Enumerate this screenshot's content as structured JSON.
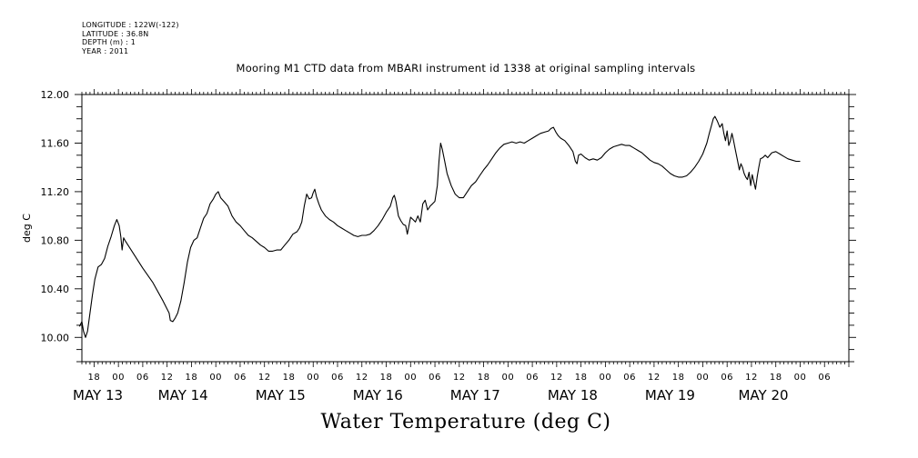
{
  "header": {
    "longitude": "LONGITUDE : 122W(-122)",
    "latitude": "LATITUDE : 36.8N",
    "depth": "DEPTH (m) : 1",
    "year": "YEAR : 2011"
  },
  "chart_data": {
    "type": "line",
    "title": "Mooring M1 CTD data from MBARI instrument id 1338 at original sampling intervals",
    "xlabel": "Water Temperature (deg C)",
    "ylabel": "deg C",
    "xlim_hours": [
      -9,
      180
    ],
    "ylim": [
      9.8,
      12.0
    ],
    "y_ticks": [
      10.0,
      10.4,
      10.8,
      11.2,
      11.6,
      12.0
    ],
    "y_tick_labels": [
      "10.00",
      "10.40",
      "10.80",
      "11.20",
      "11.60",
      "12.00"
    ],
    "x_hour_labels": [
      {
        "h": -6,
        "label": "18"
      },
      {
        "h": 0,
        "label": "00"
      },
      {
        "h": 6,
        "label": "06"
      },
      {
        "h": 12,
        "label": "12"
      },
      {
        "h": 18,
        "label": "18"
      },
      {
        "h": 24,
        "label": "00"
      },
      {
        "h": 30,
        "label": "06"
      },
      {
        "h": 36,
        "label": "12"
      },
      {
        "h": 42,
        "label": "18"
      },
      {
        "h": 48,
        "label": "00"
      },
      {
        "h": 54,
        "label": "06"
      },
      {
        "h": 60,
        "label": "12"
      },
      {
        "h": 66,
        "label": "18"
      },
      {
        "h": 72,
        "label": "00"
      },
      {
        "h": 78,
        "label": "06"
      },
      {
        "h": 84,
        "label": "12"
      },
      {
        "h": 90,
        "label": "18"
      },
      {
        "h": 96,
        "label": "00"
      },
      {
        "h": 102,
        "label": "06"
      },
      {
        "h": 108,
        "label": "12"
      },
      {
        "h": 114,
        "label": "18"
      },
      {
        "h": 120,
        "label": "00"
      },
      {
        "h": 126,
        "label": "06"
      },
      {
        "h": 132,
        "label": "12"
      },
      {
        "h": 138,
        "label": "18"
      },
      {
        "h": 144,
        "label": "00"
      },
      {
        "h": 150,
        "label": "06"
      },
      {
        "h": 156,
        "label": "12"
      },
      {
        "h": 162,
        "label": "18"
      },
      {
        "h": 168,
        "label": "00"
      },
      {
        "h": 174,
        "label": "06"
      }
    ],
    "x_day_labels": [
      {
        "h": -9,
        "label": "MAY 13"
      },
      {
        "h": 12,
        "label": "MAY 14"
      },
      {
        "h": 36,
        "label": "MAY 15"
      },
      {
        "h": 60,
        "label": "MAY 16"
      },
      {
        "h": 84,
        "label": "MAY 17"
      },
      {
        "h": 108,
        "label": "MAY 18"
      },
      {
        "h": 132,
        "label": "MAY 19"
      },
      {
        "h": 155,
        "label": "MAY 20"
      }
    ],
    "series": [
      {
        "points": [
          [
            -9.6,
            10.09
          ],
          [
            -9.0,
            10.13
          ],
          [
            -8.6,
            10.05
          ],
          [
            -8.1,
            10.0
          ],
          [
            -7.6,
            10.05
          ],
          [
            -7.0,
            10.2
          ],
          [
            -6.4,
            10.35
          ],
          [
            -5.8,
            10.48
          ],
          [
            -5.0,
            10.58
          ],
          [
            -4.2,
            10.6
          ],
          [
            -3.4,
            10.65
          ],
          [
            -2.6,
            10.75
          ],
          [
            -1.8,
            10.83
          ],
          [
            -1.0,
            10.92
          ],
          [
            -0.4,
            10.97
          ],
          [
            0.2,
            10.92
          ],
          [
            0.6,
            10.83
          ],
          [
            0.9,
            10.72
          ],
          [
            1.3,
            10.82
          ],
          [
            1.6,
            10.8
          ],
          [
            3.5,
            10.7
          ],
          [
            6.0,
            10.57
          ],
          [
            8.5,
            10.45
          ],
          [
            11.0,
            10.3
          ],
          [
            12.5,
            10.2
          ],
          [
            12.8,
            10.14
          ],
          [
            13.4,
            10.13
          ],
          [
            14.0,
            10.16
          ],
          [
            14.6,
            10.2
          ],
          [
            15.4,
            10.3
          ],
          [
            16.2,
            10.45
          ],
          [
            17.0,
            10.62
          ],
          [
            17.8,
            10.74
          ],
          [
            18.6,
            10.8
          ],
          [
            19.4,
            10.82
          ],
          [
            20.2,
            10.9
          ],
          [
            21.0,
            10.98
          ],
          [
            21.8,
            11.02
          ],
          [
            22.6,
            11.1
          ],
          [
            23.4,
            11.14
          ],
          [
            24.0,
            11.18
          ],
          [
            24.6,
            11.2
          ],
          [
            25.2,
            11.15
          ],
          [
            26.0,
            11.12
          ],
          [
            27.0,
            11.08
          ],
          [
            28.0,
            11.0
          ],
          [
            29.0,
            10.95
          ],
          [
            30.0,
            10.92
          ],
          [
            31.0,
            10.88
          ],
          [
            32.0,
            10.84
          ],
          [
            33.0,
            10.82
          ],
          [
            34.0,
            10.79
          ],
          [
            35.0,
            10.76
          ],
          [
            36.0,
            10.74
          ],
          [
            37.0,
            10.71
          ],
          [
            38.0,
            10.71
          ],
          [
            39.0,
            10.72
          ],
          [
            40.0,
            10.72
          ],
          [
            41.0,
            10.76
          ],
          [
            42.0,
            10.8
          ],
          [
            43.0,
            10.85
          ],
          [
            44.0,
            10.87
          ],
          [
            44.6,
            10.9
          ],
          [
            45.2,
            10.95
          ],
          [
            45.8,
            11.08
          ],
          [
            46.4,
            11.18
          ],
          [
            47.0,
            11.14
          ],
          [
            47.6,
            11.15
          ],
          [
            48.0,
            11.19
          ],
          [
            48.4,
            11.22
          ],
          [
            48.8,
            11.16
          ],
          [
            49.4,
            11.1
          ],
          [
            50.0,
            11.05
          ],
          [
            51.0,
            11.0
          ],
          [
            52.0,
            10.97
          ],
          [
            53.0,
            10.95
          ],
          [
            54.0,
            10.92
          ],
          [
            55.0,
            10.9
          ],
          [
            56.0,
            10.88
          ],
          [
            57.0,
            10.86
          ],
          [
            58.0,
            10.84
          ],
          [
            59.0,
            10.83
          ],
          [
            60.0,
            10.84
          ],
          [
            61.0,
            10.84
          ],
          [
            62.0,
            10.85
          ],
          [
            63.0,
            10.88
          ],
          [
            64.0,
            10.92
          ],
          [
            65.0,
            10.97
          ],
          [
            66.0,
            11.03
          ],
          [
            67.0,
            11.08
          ],
          [
            67.6,
            11.15
          ],
          [
            68.0,
            11.17
          ],
          [
            68.4,
            11.12
          ],
          [
            69.0,
            11.0
          ],
          [
            69.6,
            10.96
          ],
          [
            70.2,
            10.93
          ],
          [
            70.8,
            10.92
          ],
          [
            71.2,
            10.85
          ],
          [
            71.6,
            10.92
          ],
          [
            72.0,
            10.99
          ],
          [
            72.6,
            10.97
          ],
          [
            73.2,
            10.95
          ],
          [
            73.8,
            11.0
          ],
          [
            74.4,
            10.95
          ],
          [
            75.0,
            11.1
          ],
          [
            75.6,
            11.13
          ],
          [
            76.2,
            11.05
          ],
          [
            76.8,
            11.08
          ],
          [
            77.4,
            11.1
          ],
          [
            78.0,
            11.12
          ],
          [
            78.6,
            11.25
          ],
          [
            79.0,
            11.45
          ],
          [
            79.4,
            11.6
          ],
          [
            79.8,
            11.55
          ],
          [
            80.4,
            11.45
          ],
          [
            81.0,
            11.35
          ],
          [
            82.0,
            11.25
          ],
          [
            83.0,
            11.18
          ],
          [
            84.0,
            11.15
          ],
          [
            85.0,
            11.15
          ],
          [
            86.0,
            11.2
          ],
          [
            87.0,
            11.25
          ],
          [
            88.0,
            11.28
          ],
          [
            89.0,
            11.33
          ],
          [
            90.0,
            11.38
          ],
          [
            91.0,
            11.42
          ],
          [
            92.0,
            11.47
          ],
          [
            93.0,
            11.52
          ],
          [
            94.0,
            11.56
          ],
          [
            95.0,
            11.59
          ],
          [
            96.0,
            11.6
          ],
          [
            97.0,
            11.61
          ],
          [
            98.0,
            11.6
          ],
          [
            99.0,
            11.61
          ],
          [
            100.0,
            11.6
          ],
          [
            101.0,
            11.62
          ],
          [
            102.0,
            11.64
          ],
          [
            103.0,
            11.66
          ],
          [
            104.0,
            11.68
          ],
          [
            105.0,
            11.69
          ],
          [
            106.0,
            11.7
          ],
          [
            106.6,
            11.72
          ],
          [
            107.2,
            11.73
          ],
          [
            107.8,
            11.69
          ],
          [
            108.4,
            11.66
          ],
          [
            109.0,
            11.64
          ],
          [
            110.0,
            11.62
          ],
          [
            111.0,
            11.58
          ],
          [
            112.0,
            11.53
          ],
          [
            112.6,
            11.45
          ],
          [
            113.0,
            11.43
          ],
          [
            113.4,
            11.5
          ],
          [
            114.0,
            11.51
          ],
          [
            115.0,
            11.48
          ],
          [
            116.0,
            11.46
          ],
          [
            117.0,
            11.47
          ],
          [
            118.0,
            11.46
          ],
          [
            119.0,
            11.48
          ],
          [
            120.0,
            11.52
          ],
          [
            121.0,
            11.55
          ],
          [
            122.0,
            11.57
          ],
          [
            123.0,
            11.58
          ],
          [
            124.0,
            11.59
          ],
          [
            125.0,
            11.58
          ],
          [
            126.0,
            11.58
          ],
          [
            127.0,
            11.56
          ],
          [
            128.0,
            11.54
          ],
          [
            129.0,
            11.52
          ],
          [
            130.0,
            11.49
          ],
          [
            131.0,
            11.46
          ],
          [
            132.0,
            11.44
          ],
          [
            133.0,
            11.43
          ],
          [
            134.0,
            11.41
          ],
          [
            135.0,
            11.38
          ],
          [
            136.0,
            11.35
          ],
          [
            137.0,
            11.33
          ],
          [
            138.0,
            11.32
          ],
          [
            139.0,
            11.32
          ],
          [
            140.0,
            11.33
          ],
          [
            141.0,
            11.36
          ],
          [
            142.0,
            11.4
          ],
          [
            143.0,
            11.45
          ],
          [
            144.0,
            11.51
          ],
          [
            145.0,
            11.6
          ],
          [
            145.6,
            11.68
          ],
          [
            146.2,
            11.75
          ],
          [
            146.6,
            11.8
          ],
          [
            147.0,
            11.82
          ],
          [
            147.6,
            11.78
          ],
          [
            148.2,
            11.73
          ],
          [
            148.8,
            11.76
          ],
          [
            149.2,
            11.68
          ],
          [
            149.6,
            11.62
          ],
          [
            150.0,
            11.7
          ],
          [
            150.4,
            11.58
          ],
          [
            150.8,
            11.62
          ],
          [
            151.2,
            11.68
          ],
          [
            151.6,
            11.62
          ],
          [
            152.0,
            11.55
          ],
          [
            152.6,
            11.45
          ],
          [
            153.0,
            11.38
          ],
          [
            153.4,
            11.43
          ],
          [
            153.8,
            11.4
          ],
          [
            154.2,
            11.35
          ],
          [
            154.6,
            11.32
          ],
          [
            155.0,
            11.3
          ],
          [
            155.4,
            11.36
          ],
          [
            155.8,
            11.25
          ],
          [
            156.2,
            11.34
          ],
          [
            156.6,
            11.28
          ],
          [
            157.0,
            11.22
          ],
          [
            157.4,
            11.32
          ],
          [
            157.8,
            11.4
          ],
          [
            158.2,
            11.47
          ],
          [
            158.8,
            11.48
          ],
          [
            159.4,
            11.5
          ],
          [
            160.0,
            11.48
          ],
          [
            161.0,
            11.52
          ],
          [
            162.0,
            11.53
          ],
          [
            163.0,
            11.51
          ],
          [
            164.0,
            11.49
          ],
          [
            165.0,
            11.47
          ],
          [
            166.0,
            11.46
          ],
          [
            167.0,
            11.45
          ],
          [
            168.0,
            11.45
          ]
        ]
      }
    ]
  }
}
